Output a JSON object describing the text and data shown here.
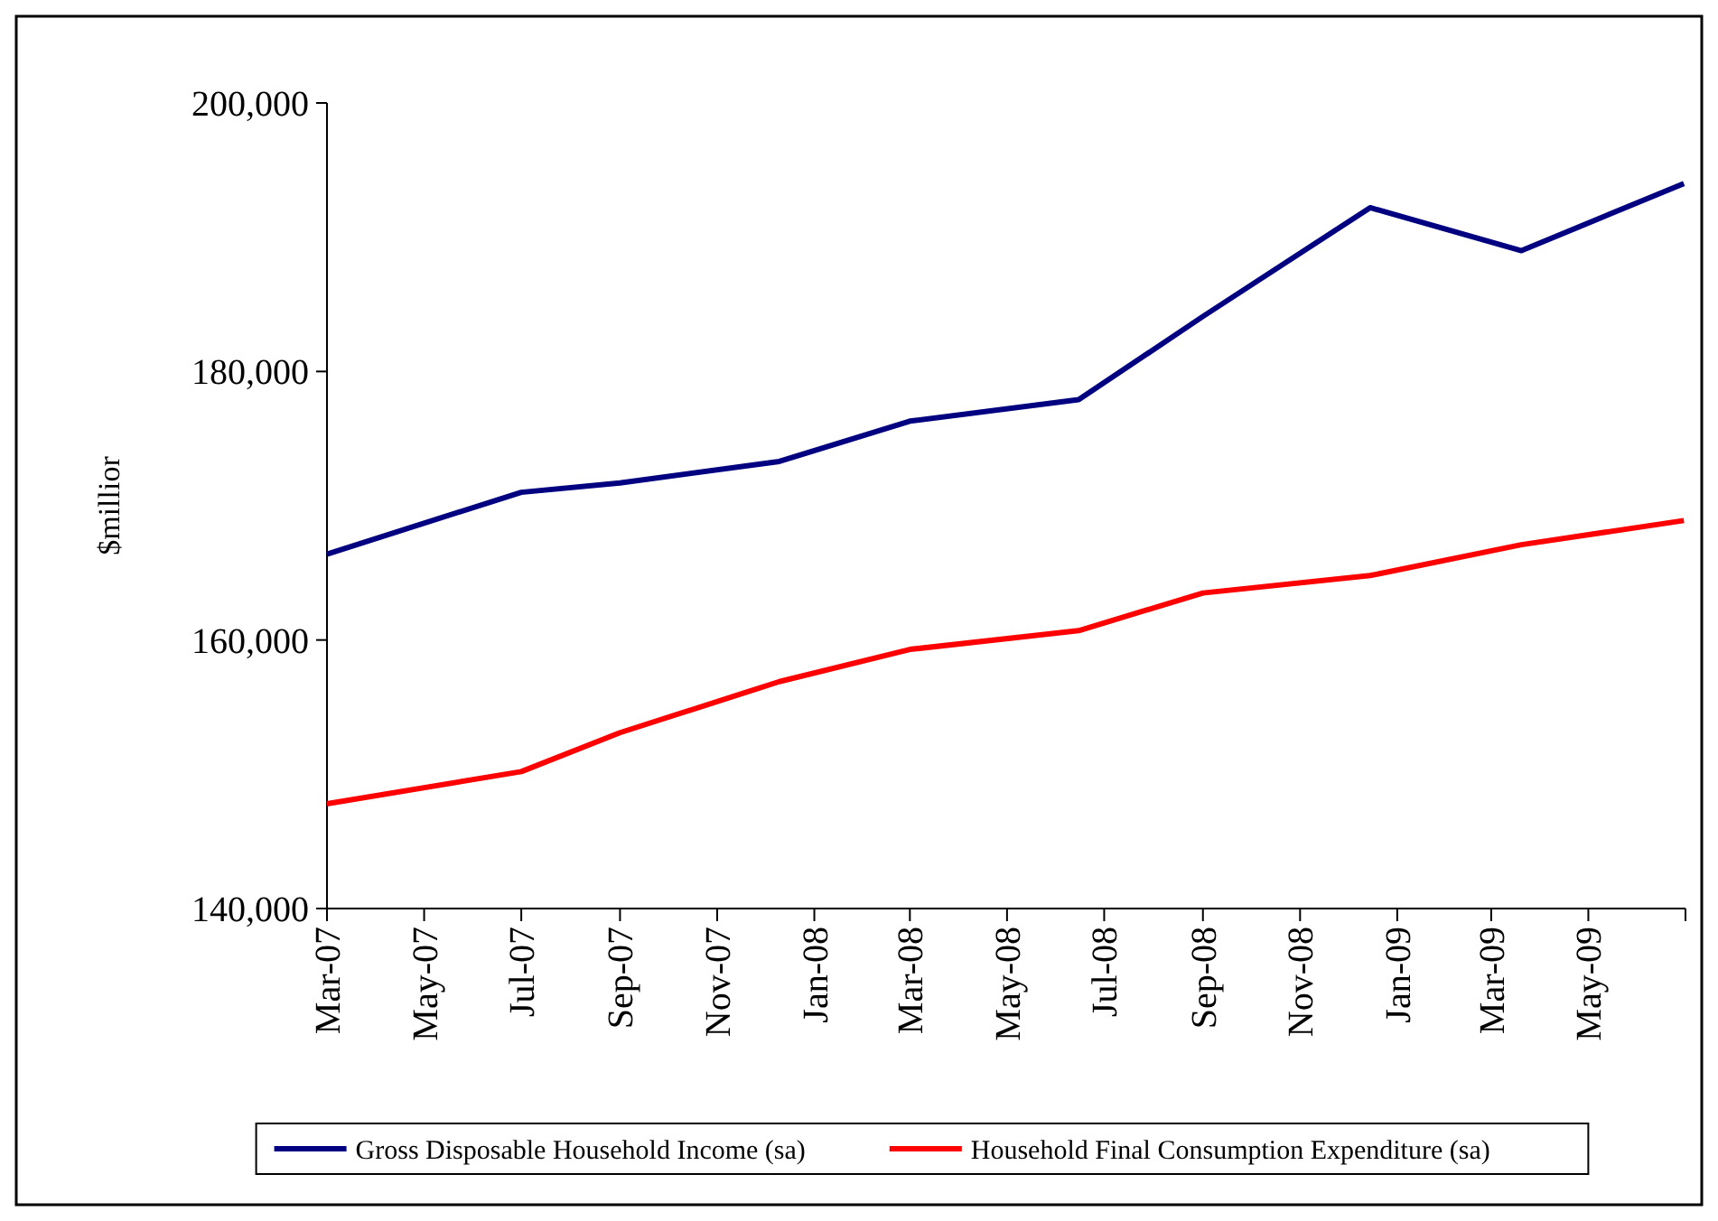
{
  "chart_data": {
    "type": "line",
    "ylabel": "$millior",
    "x": [
      "2007-03-01",
      "2007-07-01",
      "2007-09-01",
      "2007-12-10",
      "2008-03-01",
      "2008-06-15",
      "2008-09-01",
      "2008-12-15",
      "2009-03-20",
      "2009-06-30"
    ],
    "series": [
      {
        "name": "Gross Disposable Household Income (sa)",
        "color": "#000080",
        "values": [
          166400,
          171000,
          171700,
          173300,
          176300,
          177900,
          184100,
          192200,
          189000,
          194000
        ]
      },
      {
        "name": "Household Final Consumption Expenditure (sa)",
        "color": "#ff0000",
        "values": [
          147800,
          150200,
          153100,
          156900,
          159300,
          160700,
          163500,
          164800,
          167100,
          168900
        ]
      }
    ],
    "xlim": [
      "2007-03-01",
      "2009-07-01"
    ],
    "xticks": [
      {
        "value": "2007-03-01",
        "label": "Mar-07"
      },
      {
        "value": "2007-05-01",
        "label": "May-07"
      },
      {
        "value": "2007-07-01",
        "label": "Jul-07"
      },
      {
        "value": "2007-09-01",
        "label": "Sep-07"
      },
      {
        "value": "2007-11-01",
        "label": "Nov-07"
      },
      {
        "value": "2008-01-01",
        "label": "Jan-08"
      },
      {
        "value": "2008-03-01",
        "label": "Mar-08"
      },
      {
        "value": "2008-05-01",
        "label": "May-08"
      },
      {
        "value": "2008-07-01",
        "label": "Jul-08"
      },
      {
        "value": "2008-09-01",
        "label": "Sep-08"
      },
      {
        "value": "2008-11-01",
        "label": "Nov-08"
      },
      {
        "value": "2009-01-01",
        "label": "Jan-09"
      },
      {
        "value": "2009-03-01",
        "label": "Mar-09"
      },
      {
        "value": "2009-05-01",
        "label": "May-09"
      },
      {
        "value": "2009-07-01",
        "label": null
      }
    ],
    "ylim": [
      140000,
      200000
    ],
    "yticks": [
      {
        "value": 140000,
        "label": "140,000"
      },
      {
        "value": 160000,
        "label": "160,000"
      },
      {
        "value": 180000,
        "label": "180,000"
      },
      {
        "value": 200000,
        "label": "200,000"
      }
    ],
    "grid": false,
    "legend": "bottom",
    "marker": "none",
    "line_style": "solid"
  }
}
